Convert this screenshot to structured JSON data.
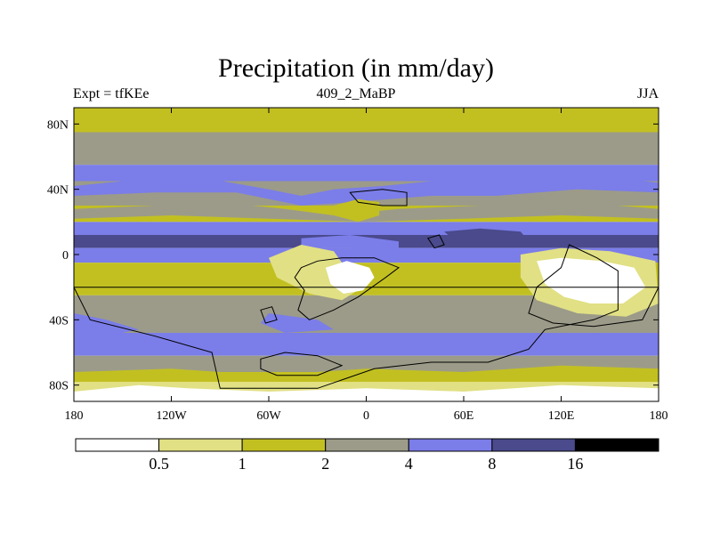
{
  "title": "Precipitation (in mm/day)",
  "subtitle_left": "Expt = tfKEe",
  "subtitle_center": "409_2_MaBP",
  "subtitle_right": "JJA",
  "colors": {
    "c0": "#ffffff",
    "c1": "#e1e084",
    "c2": "#c2c021",
    "c3": "#9c9b89",
    "c4": "#7b7de9",
    "c5": "#4a4a8c",
    "c6": "#000000"
  },
  "chart_data": {
    "type": "heatmap",
    "title": "Precipitation (in mm/day)",
    "units": "mm/day",
    "season": "JJA",
    "experiment": "tfKEe",
    "xlim": [
      -180,
      180
    ],
    "ylim": [
      -90,
      90
    ],
    "x_ticks": [
      {
        "value": -180,
        "label": "180"
      },
      {
        "value": -120,
        "label": "120W"
      },
      {
        "value": -60,
        "label": "60W"
      },
      {
        "value": 0,
        "label": "0"
      },
      {
        "value": 60,
        "label": "60E"
      },
      {
        "value": 120,
        "label": "120E"
      },
      {
        "value": 180,
        "label": "180"
      }
    ],
    "y_ticks": [
      {
        "value": 80,
        "label": "80N"
      },
      {
        "value": 40,
        "label": "40N"
      },
      {
        "value": 0,
        "label": "0"
      },
      {
        "value": -40,
        "label": "40S"
      },
      {
        "value": -80,
        "label": "80S"
      }
    ],
    "colorbar": {
      "levels": [
        0.5,
        1,
        2,
        4,
        8,
        16
      ],
      "labels": [
        "0.5",
        "1",
        "2",
        "4",
        "8",
        "16"
      ],
      "colors": [
        "#ffffff",
        "#e1e084",
        "#c2c021",
        "#9c9b89",
        "#7b7de9",
        "#4a4a8c",
        "#000000"
      ]
    },
    "bands": [
      {
        "lat_top": 90,
        "lat_bottom": 75,
        "bin": 2
      },
      {
        "lat_top": 75,
        "lat_bottom": 55,
        "bin": 3
      },
      {
        "lat_top": 55,
        "lat_bottom": 45,
        "bin": 4
      },
      {
        "lat_top": 45,
        "lat_bottom": 30,
        "bin": 3
      },
      {
        "lat_top": 30,
        "lat_bottom": 20,
        "bin": 2
      },
      {
        "lat_top": 20,
        "lat_bottom": 12,
        "bin": 4
      },
      {
        "lat_top": 12,
        "lat_bottom": 4,
        "bin": 5
      },
      {
        "lat_top": 4,
        "lat_bottom": -5,
        "bin": 4
      },
      {
        "lat_top": -5,
        "lat_bottom": -25,
        "bin": 2
      },
      {
        "lat_top": -25,
        "lat_bottom": -48,
        "bin": 3
      },
      {
        "lat_top": -48,
        "lat_bottom": -62,
        "bin": 4
      },
      {
        "lat_top": -62,
        "lat_bottom": -72,
        "bin": 3
      },
      {
        "lat_top": -72,
        "lat_bottom": -78,
        "bin": 2
      },
      {
        "lat_top": -78,
        "lat_bottom": -84,
        "bin": 1
      },
      {
        "lat_top": -84,
        "lat_bottom": -90,
        "bin": 0
      }
    ],
    "regions": [
      {
        "bin": 4,
        "polygon": [
          [
            -180,
            42
          ],
          [
            -150,
            45
          ],
          [
            -100,
            47
          ],
          [
            -60,
            40
          ],
          [
            -40,
            36
          ],
          [
            -20,
            40
          ],
          [
            10,
            42
          ],
          [
            50,
            46
          ],
          [
            120,
            50
          ],
          [
            180,
            44
          ],
          [
            180,
            38
          ],
          [
            130,
            40
          ],
          [
            80,
            36
          ],
          [
            40,
            36
          ],
          [
            -10,
            32
          ],
          [
            -40,
            30
          ],
          [
            -80,
            38
          ],
          [
            -130,
            38
          ],
          [
            -180,
            36
          ]
        ]
      },
      {
        "bin": 3,
        "polygon": [
          [
            -180,
            28
          ],
          [
            -130,
            30
          ],
          [
            -90,
            32
          ],
          [
            -50,
            28
          ],
          [
            -20,
            24
          ],
          [
            20,
            28
          ],
          [
            70,
            30
          ],
          [
            130,
            32
          ],
          [
            180,
            28
          ],
          [
            180,
            22
          ],
          [
            120,
            24
          ],
          [
            60,
            22
          ],
          [
            0,
            20
          ],
          [
            -60,
            22
          ],
          [
            -120,
            24
          ],
          [
            -180,
            22
          ]
        ]
      },
      {
        "bin": 2,
        "polygon": [
          [
            -20,
            30
          ],
          [
            -5,
            34
          ],
          [
            8,
            32
          ],
          [
            8,
            24
          ],
          [
            -5,
            20
          ],
          [
            -20,
            24
          ]
        ]
      },
      {
        "bin": 5,
        "polygon": [
          [
            48,
            14
          ],
          [
            70,
            16
          ],
          [
            95,
            14
          ],
          [
            100,
            8
          ],
          [
            80,
            6
          ],
          [
            55,
            8
          ]
        ]
      },
      {
        "bin": 4,
        "polygon": [
          [
            -40,
            10
          ],
          [
            -10,
            12
          ],
          [
            20,
            8
          ],
          [
            20,
            2
          ],
          [
            -10,
            4
          ],
          [
            -40,
            4
          ]
        ]
      },
      {
        "bin": 0,
        "polygon": [
          [
            -55,
            -4
          ],
          [
            -40,
            2
          ],
          [
            -25,
            -2
          ],
          [
            -18,
            -10
          ],
          [
            -12,
            -16
          ],
          [
            -5,
            -22
          ],
          [
            -20,
            -24
          ],
          [
            -35,
            -20
          ],
          [
            -48,
            -14
          ]
        ]
      },
      {
        "bin": 1,
        "polygon": [
          [
            -60,
            -2
          ],
          [
            -40,
            6
          ],
          [
            -20,
            2
          ],
          [
            -10,
            -12
          ],
          [
            -2,
            -20
          ],
          [
            -15,
            -28
          ],
          [
            -35,
            -24
          ],
          [
            -55,
            -14
          ]
        ]
      },
      {
        "bin": 0,
        "polygon": [
          [
            -25,
            -8
          ],
          [
            -12,
            -4
          ],
          [
            2,
            -8
          ],
          [
            5,
            -14
          ],
          [
            -2,
            -22
          ],
          [
            -14,
            -24
          ],
          [
            -22,
            -18
          ]
        ]
      },
      {
        "bin": 0,
        "polygon": [
          [
            102,
            -2
          ],
          [
            115,
            0
          ],
          [
            140,
            -2
          ],
          [
            160,
            -6
          ],
          [
            170,
            -10
          ],
          [
            175,
            -22
          ],
          [
            160,
            -32
          ],
          [
            140,
            -34
          ],
          [
            125,
            -30
          ],
          [
            110,
            -24
          ],
          [
            105,
            -12
          ]
        ]
      },
      {
        "bin": 1,
        "polygon": [
          [
            95,
            0
          ],
          [
            120,
            4
          ],
          [
            150,
            2
          ],
          [
            178,
            -4
          ],
          [
            180,
            -30
          ],
          [
            160,
            -38
          ],
          [
            130,
            -36
          ],
          [
            105,
            -28
          ],
          [
            95,
            -14
          ]
        ]
      },
      {
        "bin": 0,
        "polygon": [
          [
            105,
            -4
          ],
          [
            120,
            -2
          ],
          [
            145,
            -4
          ],
          [
            165,
            -8
          ],
          [
            172,
            -20
          ],
          [
            158,
            -30
          ],
          [
            138,
            -30
          ],
          [
            122,
            -26
          ],
          [
            110,
            -18
          ]
        ]
      },
      {
        "bin": 4,
        "polygon": [
          [
            -180,
            -36
          ],
          [
            -160,
            -40
          ],
          [
            -140,
            -46
          ],
          [
            -160,
            -50
          ],
          [
            -180,
            -48
          ]
        ]
      },
      {
        "bin": 4,
        "polygon": [
          [
            -60,
            -36
          ],
          [
            -30,
            -40
          ],
          [
            -20,
            -46
          ],
          [
            -50,
            -48
          ],
          [
            -65,
            -42
          ]
        ]
      },
      {
        "bin": 2,
        "polygon": [
          [
            -180,
            -72
          ],
          [
            -120,
            -70
          ],
          [
            -60,
            -74
          ],
          [
            0,
            -70
          ],
          [
            60,
            -72
          ],
          [
            120,
            -68
          ],
          [
            180,
            -70
          ],
          [
            180,
            -78
          ],
          [
            -180,
            -78
          ]
        ]
      },
      {
        "bin": 0,
        "polygon": [
          [
            -180,
            -84
          ],
          [
            -140,
            -80
          ],
          [
            -110,
            -82
          ],
          [
            -60,
            -84
          ],
          [
            0,
            -82
          ],
          [
            60,
            -84
          ],
          [
            120,
            -80
          ],
          [
            180,
            -82
          ],
          [
            180,
            -90
          ],
          [
            -180,
            -90
          ]
        ]
      }
    ],
    "outlines": [
      [
        [
          -180,
          -20
        ],
        [
          -170,
          -40
        ],
        [
          -130,
          -50
        ],
        [
          -95,
          -60
        ],
        [
          -90,
          -82
        ],
        [
          -30,
          -82
        ],
        [
          5,
          -70
        ],
        [
          40,
          -66
        ],
        [
          75,
          -66
        ],
        [
          100,
          -58
        ],
        [
          110,
          -46
        ],
        [
          140,
          -40
        ],
        [
          155,
          -34
        ],
        [
          155,
          -10
        ],
        [
          142,
          -2
        ],
        [
          125,
          6
        ],
        [
          120,
          -8
        ],
        [
          105,
          -20
        ],
        [
          100,
          -36
        ],
        [
          115,
          -42
        ],
        [
          140,
          -44
        ],
        [
          170,
          -40
        ],
        [
          180,
          -20
        ]
      ],
      [
        [
          -40,
          -8
        ],
        [
          -30,
          -4
        ],
        [
          -15,
          -2
        ],
        [
          5,
          -2
        ],
        [
          20,
          -8
        ],
        [
          12,
          -14
        ],
        [
          -5,
          -26
        ],
        [
          -20,
          -34
        ],
        [
          -35,
          -40
        ],
        [
          -42,
          -34
        ],
        [
          -38,
          -22
        ],
        [
          -44,
          -14
        ]
      ],
      [
        [
          -65,
          -34
        ],
        [
          -58,
          -32
        ],
        [
          -55,
          -40
        ],
        [
          -62,
          -42
        ]
      ],
      [
        [
          -10,
          38
        ],
        [
          10,
          40
        ],
        [
          25,
          38
        ],
        [
          25,
          30
        ],
        [
          10,
          30
        ],
        [
          -5,
          32
        ]
      ],
      [
        [
          38,
          10
        ],
        [
          45,
          12
        ],
        [
          48,
          6
        ],
        [
          42,
          4
        ]
      ],
      [
        [
          -65,
          -64
        ],
        [
          -50,
          -60
        ],
        [
          -30,
          -62
        ],
        [
          -15,
          -68
        ],
        [
          -30,
          -74
        ],
        [
          -55,
          -74
        ],
        [
          -65,
          -70
        ]
      ]
    ]
  }
}
